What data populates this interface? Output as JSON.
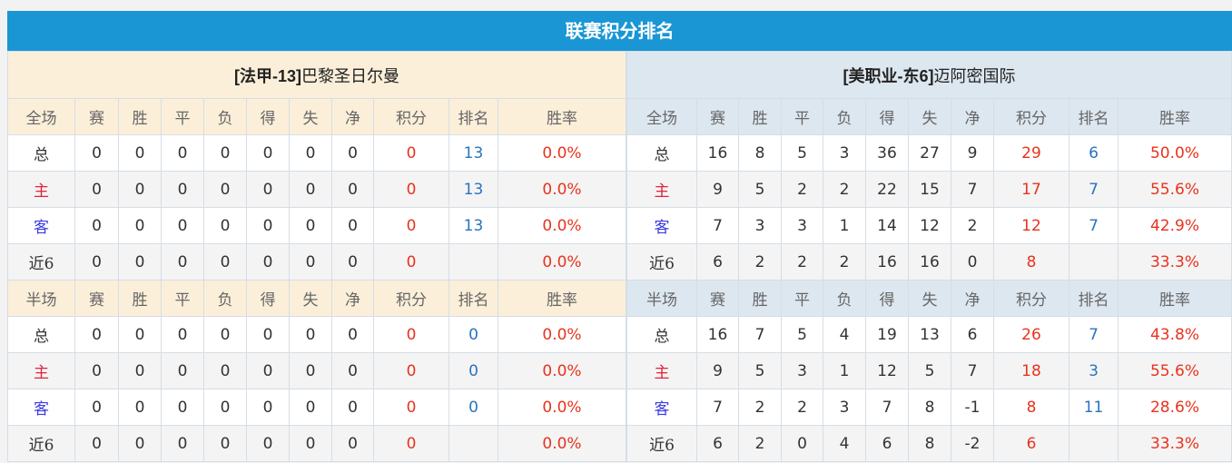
{
  "title": "联赛积分排名",
  "columns_full": [
    "全场",
    "赛",
    "胜",
    "平",
    "负",
    "得",
    "失",
    "净",
    "积分",
    "排名",
    "胜率"
  ],
  "columns_half": [
    "半场",
    "赛",
    "胜",
    "平",
    "负",
    "得",
    "失",
    "净",
    "积分",
    "排名",
    "胜率"
  ],
  "colors": {
    "title_bg": "#1a96d4",
    "points": "#e8331d",
    "rank": "#2a73c0"
  },
  "left": {
    "team_prefix": "[法甲-13]",
    "team_name": "巴黎圣日尔曼",
    "full": [
      [
        "总",
        "0",
        "0",
        "0",
        "0",
        "0",
        "0",
        "0",
        "0",
        "13",
        "0.0%"
      ],
      [
        "主",
        "0",
        "0",
        "0",
        "0",
        "0",
        "0",
        "0",
        "0",
        "13",
        "0.0%"
      ],
      [
        "客",
        "0",
        "0",
        "0",
        "0",
        "0",
        "0",
        "0",
        "0",
        "13",
        "0.0%"
      ],
      [
        "近6",
        "0",
        "0",
        "0",
        "0",
        "0",
        "0",
        "0",
        "0",
        "",
        "0.0%"
      ]
    ],
    "half": [
      [
        "总",
        "0",
        "0",
        "0",
        "0",
        "0",
        "0",
        "0",
        "0",
        "0",
        "0.0%"
      ],
      [
        "主",
        "0",
        "0",
        "0",
        "0",
        "0",
        "0",
        "0",
        "0",
        "0",
        "0.0%"
      ],
      [
        "客",
        "0",
        "0",
        "0",
        "0",
        "0",
        "0",
        "0",
        "0",
        "0",
        "0.0%"
      ],
      [
        "近6",
        "0",
        "0",
        "0",
        "0",
        "0",
        "0",
        "0",
        "0",
        "",
        "0.0%"
      ]
    ]
  },
  "right": {
    "team_prefix": "[美职业-东6]",
    "team_name": "迈阿密国际",
    "full": [
      [
        "总",
        "16",
        "8",
        "5",
        "3",
        "36",
        "27",
        "9",
        "29",
        "6",
        "50.0%"
      ],
      [
        "主",
        "9",
        "5",
        "2",
        "2",
        "22",
        "15",
        "7",
        "17",
        "7",
        "55.6%"
      ],
      [
        "客",
        "7",
        "3",
        "3",
        "1",
        "14",
        "12",
        "2",
        "12",
        "7",
        "42.9%"
      ],
      [
        "近6",
        "6",
        "2",
        "2",
        "2",
        "16",
        "16",
        "0",
        "8",
        "",
        "33.3%"
      ]
    ],
    "half": [
      [
        "总",
        "16",
        "7",
        "5",
        "4",
        "19",
        "13",
        "6",
        "26",
        "7",
        "43.8%"
      ],
      [
        "主",
        "9",
        "5",
        "3",
        "1",
        "12",
        "5",
        "7",
        "18",
        "3",
        "55.6%"
      ],
      [
        "客",
        "7",
        "2",
        "2",
        "3",
        "7",
        "8",
        "-1",
        "8",
        "11",
        "28.6%"
      ],
      [
        "近6",
        "6",
        "2",
        "0",
        "4",
        "6",
        "8",
        "-2",
        "6",
        "",
        "33.3%"
      ]
    ]
  }
}
